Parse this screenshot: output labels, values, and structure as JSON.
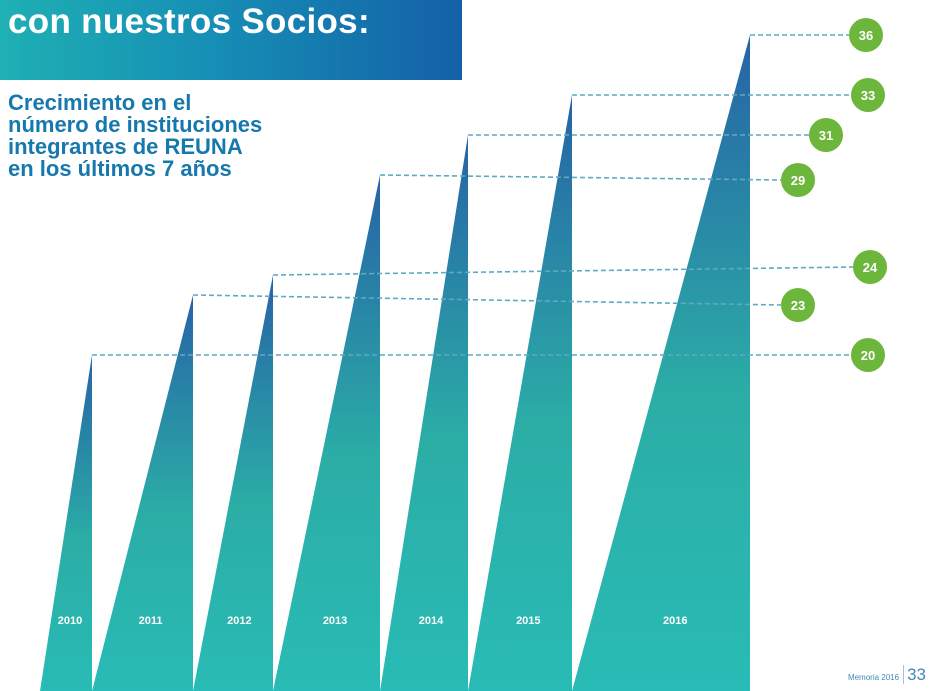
{
  "header": {
    "title": "con nuestros Socios:",
    "subtitle_lines": [
      "Crecimiento en el",
      "número de instituciones",
      "integrantes de REUNA",
      "en los últimos 7 años"
    ]
  },
  "colors": {
    "band_top": "#1657a0",
    "band_bottom": "#19b6b0",
    "badge": "#6cb63c",
    "dash": "#5fa9c2"
  },
  "chart_data": {
    "type": "bar",
    "categories": [
      "2010",
      "2011",
      "2012",
      "2013",
      "2014",
      "2015",
      "2016"
    ],
    "values": [
      20,
      23,
      24,
      29,
      31,
      33,
      36
    ],
    "badge_labels": [
      "20",
      "23",
      "24",
      "29",
      "31",
      "33",
      "36"
    ],
    "title": "",
    "xlabel": "",
    "ylabel": "",
    "grid": false,
    "legend": "none"
  },
  "footer": {
    "caption": "Memoria 2016",
    "page": "33"
  }
}
